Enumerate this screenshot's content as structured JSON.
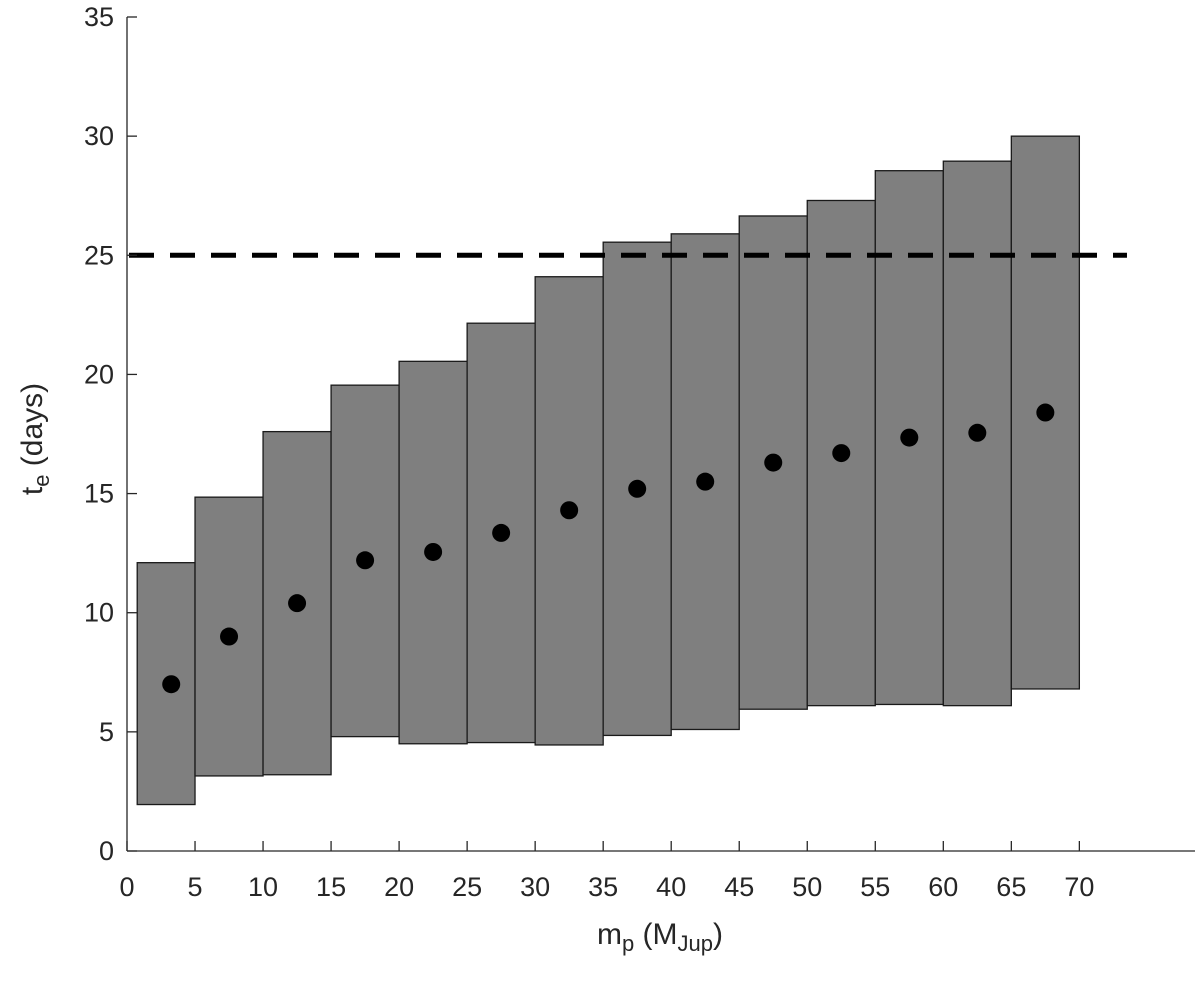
{
  "chart_data": {
    "type": "scatter",
    "x_axis": {
      "label_main": "m",
      "label_main_sub": "p",
      "label_rest_open": " (M",
      "label_rest_sub": "Jup",
      "label_rest_close": ")",
      "range": [
        0,
        78.5
      ],
      "ticks": [
        "0",
        "5",
        "10",
        "15",
        "20",
        "25",
        "30",
        "35",
        "40",
        "45",
        "50",
        "55",
        "60",
        "65",
        "70"
      ]
    },
    "y_axis": {
      "label_main": "t",
      "label_main_sub": "e",
      "label_rest": " (days)",
      "range": [
        0,
        35
      ],
      "ticks": [
        "0",
        "5",
        "10",
        "15",
        "20",
        "25",
        "30",
        "35"
      ]
    },
    "grid": false,
    "legend": "none",
    "series": [
      {
        "kind": "range_boxes",
        "fill_color": "#7f7f7f",
        "edge_color": "#1a1a1a",
        "bins": [
          {
            "x0": 0.75,
            "x1": 5,
            "low": 1.95,
            "high": 12.1
          },
          {
            "x0": 5,
            "x1": 10,
            "low": 3.15,
            "high": 14.85
          },
          {
            "x0": 10,
            "x1": 15,
            "low": 3.2,
            "high": 17.6
          },
          {
            "x0": 15,
            "x1": 20,
            "low": 4.8,
            "high": 19.55
          },
          {
            "x0": 20,
            "x1": 25,
            "low": 4.5,
            "high": 20.55
          },
          {
            "x0": 25,
            "x1": 30,
            "low": 4.55,
            "high": 22.15
          },
          {
            "x0": 30,
            "x1": 35,
            "low": 4.45,
            "high": 24.1
          },
          {
            "x0": 35,
            "x1": 40,
            "low": 4.85,
            "high": 25.55
          },
          {
            "x0": 40,
            "x1": 45,
            "low": 5.1,
            "high": 25.9
          },
          {
            "x0": 45,
            "x1": 50,
            "low": 5.95,
            "high": 26.65
          },
          {
            "x0": 50,
            "x1": 55,
            "low": 6.1,
            "high": 27.3
          },
          {
            "x0": 55,
            "x1": 60,
            "low": 6.15,
            "high": 28.55
          },
          {
            "x0": 60,
            "x1": 65,
            "low": 6.1,
            "high": 28.95
          },
          {
            "x0": 65,
            "x1": 70,
            "low": 6.8,
            "high": 30.0
          }
        ]
      },
      {
        "kind": "points",
        "color": "#000000",
        "points": [
          {
            "x": 3.25,
            "y": 7.0
          },
          {
            "x": 7.5,
            "y": 9.0
          },
          {
            "x": 12.5,
            "y": 10.4
          },
          {
            "x": 17.5,
            "y": 12.2
          },
          {
            "x": 22.5,
            "y": 12.55
          },
          {
            "x": 27.5,
            "y": 13.35
          },
          {
            "x": 32.5,
            "y": 14.3
          },
          {
            "x": 37.5,
            "y": 15.2
          },
          {
            "x": 42.5,
            "y": 15.5
          },
          {
            "x": 47.5,
            "y": 16.3
          },
          {
            "x": 52.5,
            "y": 16.7
          },
          {
            "x": 57.5,
            "y": 17.35
          },
          {
            "x": 62.5,
            "y": 17.55
          },
          {
            "x": 67.5,
            "y": 18.4
          }
        ]
      },
      {
        "kind": "reference_line",
        "style": "dashed",
        "color": "#000000",
        "y": 25,
        "x_range": [
          0,
          73.5
        ]
      }
    ]
  }
}
